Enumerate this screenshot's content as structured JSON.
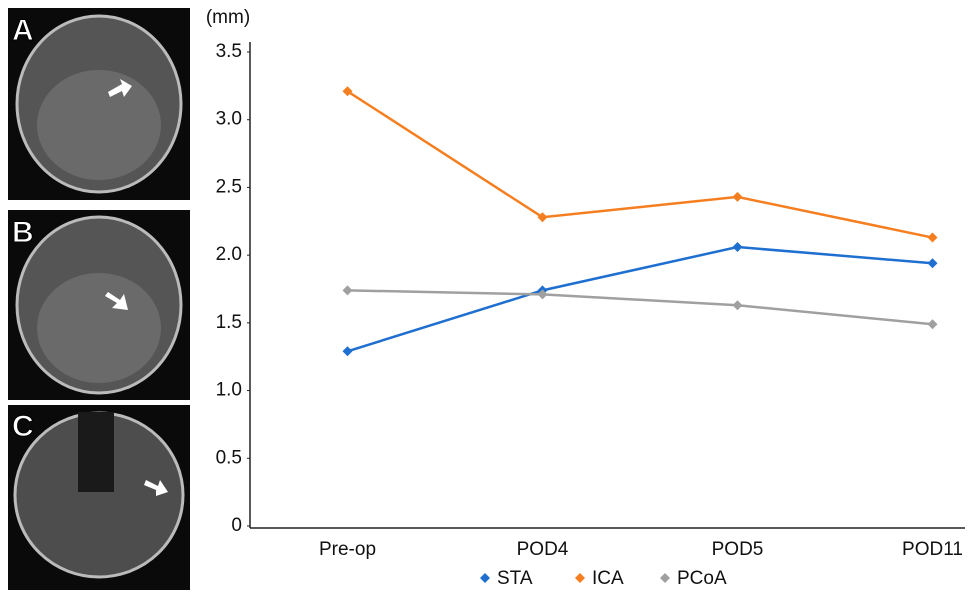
{
  "panels": [
    {
      "label": "A"
    },
    {
      "label": "B"
    },
    {
      "label": "C"
    }
  ],
  "chart_data": {
    "type": "line",
    "y_label": "(mm)",
    "categories": [
      "Pre-op",
      "POD4",
      "POD5",
      "POD11"
    ],
    "series": [
      {
        "name": "STA",
        "color": "#1f6fd0",
        "values": [
          1.29,
          1.74,
          2.06,
          1.94
        ]
      },
      {
        "name": "ICA",
        "color": "#f57f20",
        "values": [
          3.21,
          2.28,
          2.43,
          2.13
        ]
      },
      {
        "name": "PCoA",
        "color": "#a0a0a0",
        "values": [
          1.74,
          1.71,
          1.63,
          1.49
        ]
      }
    ],
    "ylim": [
      0,
      3.5
    ],
    "yticks": [
      0,
      0.5,
      {
        "value": 1,
        "label": "1.0"
      },
      1.5,
      {
        "value": 2,
        "label": "2.0"
      },
      2.5,
      {
        "value": 3,
        "label": "3.0"
      },
      3.5
    ],
    "legend": "bottom"
  }
}
